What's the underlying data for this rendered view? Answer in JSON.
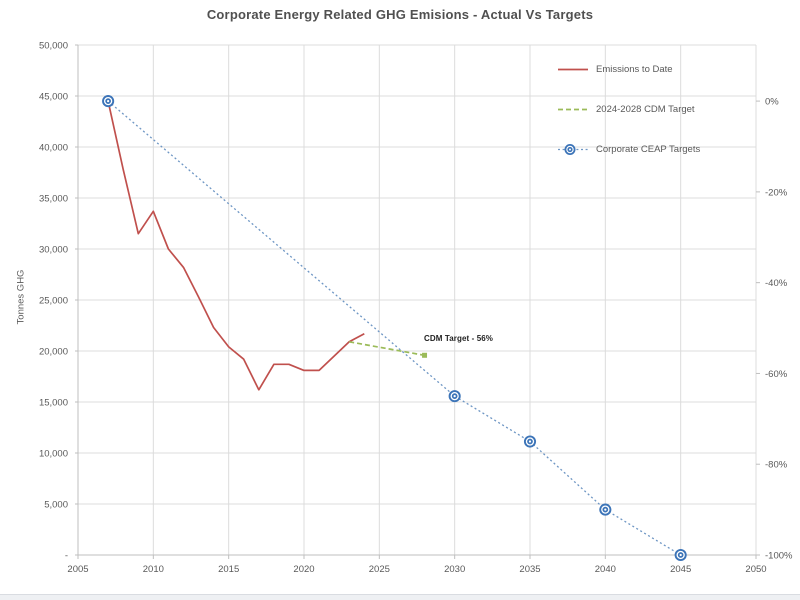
{
  "title": "Corporate Energy Related GHG Emisions - Actual Vs Targets",
  "annotation": {
    "text": "CDM Target - 56%"
  },
  "legend": {
    "items": [
      {
        "label": "Emissions to Date"
      },
      {
        "label": "2024-2028 CDM Target"
      },
      {
        "label": "Corporate CEAP Targets"
      }
    ]
  },
  "colors": {
    "emissions_red": "#C0504D",
    "cdm_green": "#9BBB59",
    "ceap_blue": "#3C74B8",
    "ceap_line_blue": "#6E96C4",
    "grid": "#DCDCDC",
    "axis": "#BFBFBF",
    "label_gray": "#595959",
    "title_gray": "#505050"
  },
  "chart_data": {
    "type": "line",
    "title": "Corporate Energy Related GHG Emisions - Actual Vs Targets",
    "ylabel_left": "Tonnes GHG",
    "ylabel_right_format": "percent vs 2007 baseline",
    "x_range": [
      2005,
      2050
    ],
    "ylim_left": [
      0,
      50000
    ],
    "ylim_right_percent": [
      0,
      -100
    ],
    "baseline_tonnes": 44500,
    "grid": true,
    "legend_position": "top-right-inside",
    "x_ticks": [
      {
        "v": 2005,
        "label": "2005"
      },
      {
        "v": 2010,
        "label": "2010"
      },
      {
        "v": 2015,
        "label": "2015"
      },
      {
        "v": 2020,
        "label": "2020"
      },
      {
        "v": 2025,
        "label": "2025"
      },
      {
        "v": 2030,
        "label": "2030"
      },
      {
        "v": 2035,
        "label": "2035"
      },
      {
        "v": 2040,
        "label": "2040"
      },
      {
        "v": 2045,
        "label": "2045"
      },
      {
        "v": 2050,
        "label": "2050"
      }
    ],
    "y_left_ticks": [
      {
        "v": 0,
        "label": "-"
      },
      {
        "v": 5000,
        "label": "5,000"
      },
      {
        "v": 10000,
        "label": "10,000"
      },
      {
        "v": 15000,
        "label": "15,000"
      },
      {
        "v": 20000,
        "label": "20,000"
      },
      {
        "v": 25000,
        "label": "25,000"
      },
      {
        "v": 30000,
        "label": "30,000"
      },
      {
        "v": 35000,
        "label": "35,000"
      },
      {
        "v": 40000,
        "label": "40,000"
      },
      {
        "v": 45000,
        "label": "45,000"
      },
      {
        "v": 50000,
        "label": "50,000"
      }
    ],
    "y_right_ticks": [
      {
        "p": 0,
        "label": "0%"
      },
      {
        "p": -20,
        "label": "-20%"
      },
      {
        "p": -40,
        "label": "-40%"
      },
      {
        "p": -60,
        "label": "-60%"
      },
      {
        "p": -80,
        "label": "-80%"
      },
      {
        "p": -100,
        "label": "-100%"
      }
    ],
    "series": [
      {
        "name": "Emissions to Date",
        "style": "solid",
        "color": "#C0504D",
        "x": [
          2007,
          2008,
          2009,
          2010,
          2011,
          2012,
          2013,
          2014,
          2015,
          2016,
          2017,
          2018,
          2019,
          2020,
          2021,
          2022,
          2023,
          2024
        ],
        "values": [
          44500,
          37800,
          31500,
          33700,
          30000,
          28200,
          25300,
          22300,
          20400,
          19200,
          16200,
          18700,
          18700,
          18100,
          18100,
          19500,
          20900,
          21700
        ]
      },
      {
        "name": "2024-2028 CDM Target",
        "style": "dashed",
        "color": "#9BBB59",
        "x": [
          2023,
          2028
        ],
        "values": [
          20900,
          19580
        ],
        "end_marker": "square",
        "target_note": "56% reduction from baseline"
      },
      {
        "name": "Corporate CEAP Targets",
        "style": "dotted",
        "color": "#3C74B8",
        "line_color": "#6E96C4",
        "marker": "double-circle",
        "x": [
          2007,
          2030,
          2035,
          2040,
          2045
        ],
        "values": [
          44500,
          15575,
          11125,
          4450,
          0
        ],
        "percent_of_baseline": [
          0,
          -65,
          -75,
          -90,
          -100
        ]
      }
    ]
  }
}
